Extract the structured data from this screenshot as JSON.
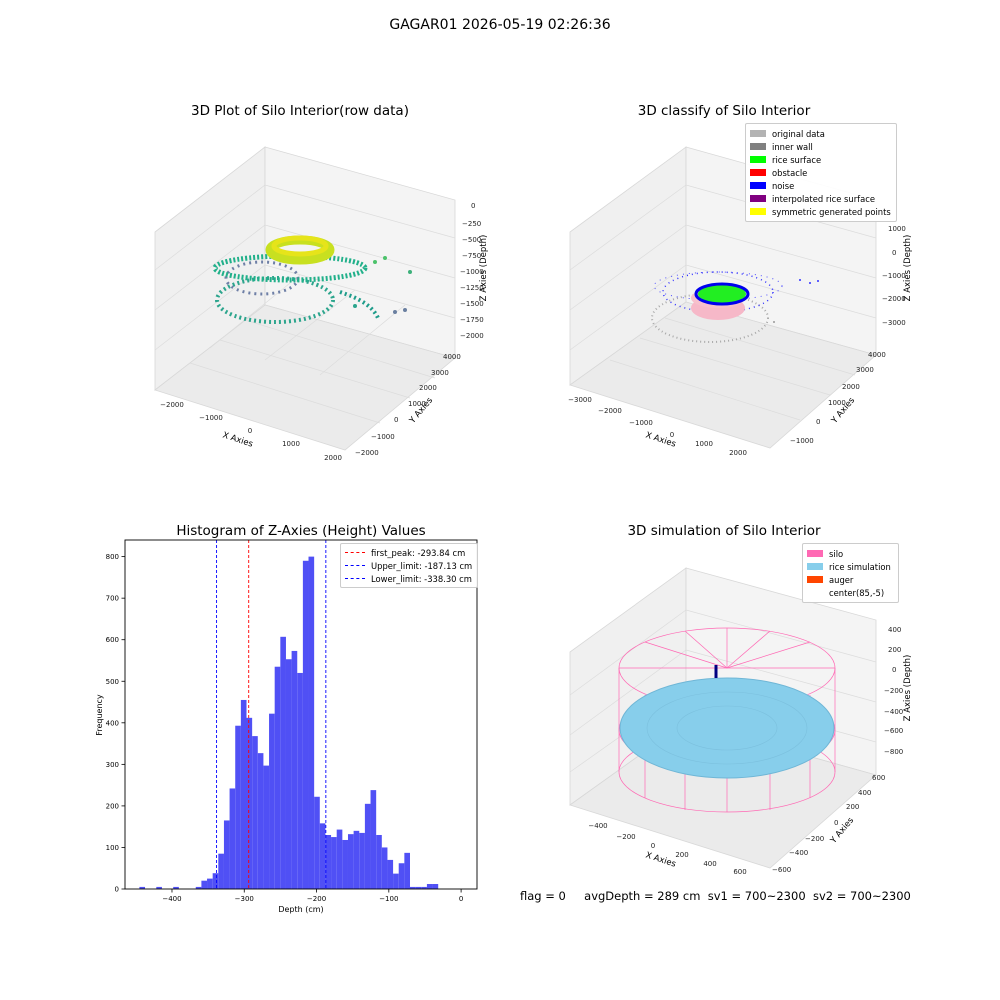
{
  "suptitle": "GAGAR01 2026-05-19 02:26:36",
  "panel1": {
    "title": "3D Plot of Silo Interior(row data)",
    "xlabel": "X Axies",
    "ylabel": "Y Axies",
    "zlabel": "Z Axies (Depth)",
    "xticks": [
      "−2000",
      "−1000",
      "0",
      "1000",
      "2000"
    ],
    "yticks": [
      "−2000",
      "−1000",
      "0",
      "1000",
      "2000",
      "3000",
      "4000"
    ],
    "zticks": [
      "0",
      "−250",
      "−500",
      "−750",
      "−1000",
      "−1250",
      "−1500",
      "−1750",
      "−2000"
    ]
  },
  "panel2": {
    "title": "3D classify of Silo Interior",
    "xlabel": "X Axies",
    "ylabel": "Y Axies",
    "zlabel": "Z Axies (Depth)",
    "xticks": [
      "−3000",
      "−2000",
      "−1000",
      "0",
      "1000",
      "2000"
    ],
    "yticks": [
      "−1000",
      "0",
      "1000",
      "2000",
      "3000",
      "4000"
    ],
    "zticks": [
      "1000",
      "0",
      "−1000",
      "−2000",
      "−3000"
    ],
    "legend": [
      {
        "label": "original data",
        "color": "#b3b3b3"
      },
      {
        "label": "inner wall",
        "color": "#808080"
      },
      {
        "label": "rice surface",
        "color": "#00ff00"
      },
      {
        "label": "obstacle",
        "color": "#ff0000"
      },
      {
        "label": "noise",
        "color": "#0000ff"
      },
      {
        "label": "interpolated rice surface",
        "color": "#800080"
      },
      {
        "label": "symmetric generated points",
        "color": "#ffff00"
      }
    ]
  },
  "panel3": {
    "title": "Histogram of Z-Axies (Height) Values",
    "legend": [
      {
        "label": "first_peak: -293.84 cm",
        "color": "#ff0000"
      },
      {
        "label": "Upper_limit: -187.13 cm",
        "color": "#0000ff"
      },
      {
        "label": "Lower_limit: -338.30 cm",
        "color": "#0000ff"
      }
    ]
  },
  "panel4": {
    "title": "3D simulation of Silo Interior",
    "xlabel": "X Axies",
    "ylabel": "Y Axies",
    "zlabel": "Z Axies (Depth)",
    "xticks": [
      "−400",
      "−200",
      "0",
      "200",
      "400",
      "600"
    ],
    "yticks": [
      "−600",
      "−400",
      "−200",
      "0",
      "200",
      "400",
      "600"
    ],
    "zticks": [
      "400",
      "200",
      "0",
      "−200",
      "−400",
      "−600",
      "−800"
    ],
    "legend": [
      {
        "label": "silo",
        "color": "#ff69b4"
      },
      {
        "label": "rice simulation",
        "color": "#87ceeb"
      },
      {
        "label": "auger",
        "color": "#ff4500"
      },
      {
        "label": "center(85,-5)",
        "color": "#ffffff"
      }
    ]
  },
  "status": {
    "flag": "flag = 0",
    "avg": "avgDepth = 289 cm",
    "sv1": "sv1 = 700~2300",
    "sv2": "sv2 = 700~2300"
  },
  "chart_data": [
    {
      "type": "scatter",
      "title": "3D Plot of Silo Interior(row data)",
      "xlabel": "X Axies",
      "ylabel": "Y Axies",
      "zlabel": "Z Axies (Depth)",
      "xlim": [
        -2500,
        2000
      ],
      "ylim": [
        -2000,
        4000
      ],
      "zlim": [
        -2000,
        0
      ]
    },
    {
      "type": "scatter",
      "title": "3D classify of Silo Interior",
      "xlabel": "X Axies",
      "ylabel": "Y Axies",
      "zlabel": "Z Axies (Depth)",
      "xlim": [
        -3000,
        2500
      ],
      "ylim": [
        -1500,
        4000
      ],
      "zlim": [
        -3500,
        1500
      ],
      "series": [
        {
          "name": "original data"
        },
        {
          "name": "inner wall"
        },
        {
          "name": "rice surface"
        },
        {
          "name": "obstacle"
        },
        {
          "name": "noise"
        },
        {
          "name": "interpolated rice surface"
        },
        {
          "name": "symmetric generated points"
        }
      ],
      "legend": "top-right"
    },
    {
      "type": "bar",
      "title": "Histogram of Z-Axies (Height) Values",
      "xlabel": "Depth (cm)",
      "ylabel": "Frequency",
      "xlim": [
        -465,
        22
      ],
      "ylim": [
        0,
        840
      ],
      "xticks": [
        -400,
        -300,
        -200,
        -100,
        0
      ],
      "yticks": [
        0,
        100,
        200,
        300,
        400,
        500,
        600,
        700,
        800
      ],
      "bin_width": 7.8,
      "bins": [
        [
          -445.1,
          5
        ],
        [
          -421.7,
          5
        ],
        [
          -398.3,
          5
        ],
        [
          -367.1,
          5
        ],
        [
          -359.3,
          20
        ],
        [
          -351.5,
          25
        ],
        [
          -343.7,
          38
        ],
        [
          -335.9,
          85
        ],
        [
          -328.1,
          165
        ],
        [
          -320.3,
          242
        ],
        [
          -312.5,
          393
        ],
        [
          -304.7,
          455
        ],
        [
          -296.9,
          412
        ],
        [
          -289.1,
          368
        ],
        [
          -281.3,
          327
        ],
        [
          -273.5,
          297
        ],
        [
          -265.7,
          422
        ],
        [
          -257.9,
          535
        ],
        [
          -250.1,
          607
        ],
        [
          -242.3,
          553
        ],
        [
          -234.5,
          573
        ],
        [
          -226.7,
          520
        ],
        [
          -218.9,
          790
        ],
        [
          -211.1,
          800
        ],
        [
          -203.3,
          222
        ],
        [
          -195.5,
          158
        ],
        [
          -187.7,
          130
        ],
        [
          -179.9,
          125
        ],
        [
          -172.1,
          143
        ],
        [
          -164.3,
          118
        ],
        [
          -156.5,
          132
        ],
        [
          -148.7,
          140
        ],
        [
          -140.9,
          135
        ],
        [
          -133.1,
          205
        ],
        [
          -125.3,
          238
        ],
        [
          -117.5,
          130
        ],
        [
          -109.7,
          100
        ],
        [
          -101.9,
          70
        ],
        [
          -94.1,
          37
        ],
        [
          -86.3,
          62
        ],
        [
          -78.5,
          87
        ],
        [
          -70.7,
          5
        ],
        [
          -62.9,
          5
        ],
        [
          -55.1,
          5
        ],
        [
          -47.3,
          12
        ],
        [
          -39.5,
          12
        ]
      ],
      "vlines": [
        {
          "name": "first_peak: -293.84 cm",
          "x": -293.84,
          "color": "#ff0000"
        },
        {
          "name": "Upper_limit: -187.13 cm",
          "x": -187.13,
          "color": "#0000ff"
        },
        {
          "name": "Lower_limit: -338.30 cm",
          "x": -338.3,
          "color": "#0000ff"
        }
      ],
      "legend": "top-right"
    },
    {
      "type": "scatter",
      "title": "3D simulation of Silo Interior",
      "xlabel": "X Axies",
      "ylabel": "Y Axies",
      "zlabel": "Z Axies (Depth)",
      "xlim": [
        -500,
        700
      ],
      "ylim": [
        -700,
        700
      ],
      "zlim": [
        -900,
        500
      ],
      "series": [
        {
          "name": "silo"
        },
        {
          "name": "rice simulation"
        },
        {
          "name": "auger"
        },
        {
          "name": "center(85,-5)"
        }
      ],
      "legend": "top-right"
    }
  ]
}
